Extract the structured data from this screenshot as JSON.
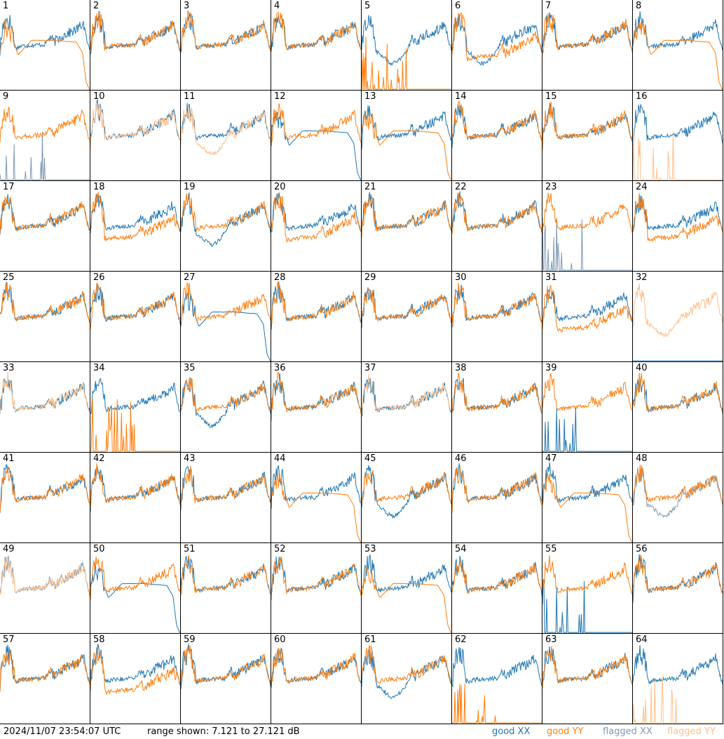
{
  "chart_data": {
    "type": "line",
    "title": "",
    "ylabel": "dB",
    "ylim": [
      7.121,
      27.121
    ],
    "grid_columns": 8,
    "colors": {
      "good_xx": "#1f77b4",
      "good_yy": "#ff7f0e",
      "flagged_xx": "#7f9ab5",
      "flagged_yy": "#ffbf8a"
    },
    "panels": [
      {
        "label": "1",
        "xx": [
          "good",
          "normal"
        ],
        "yy": [
          "good",
          "rolloff"
        ]
      },
      {
        "label": "2",
        "xx": [
          "good",
          "normal"
        ],
        "yy": [
          "good",
          "normal"
        ]
      },
      {
        "label": "3",
        "xx": [
          "good",
          "normal"
        ],
        "yy": [
          "good",
          "normal"
        ]
      },
      {
        "label": "4",
        "xx": [
          "good",
          "normal"
        ],
        "yy": [
          "good",
          "normal"
        ]
      },
      {
        "label": "5",
        "xx": [
          "good",
          "dip"
        ],
        "yy": [
          "good",
          "spikes"
        ]
      },
      {
        "label": "6",
        "xx": [
          "good",
          "dip"
        ],
        "yy": [
          "good",
          "low"
        ]
      },
      {
        "label": "7",
        "xx": [
          "good",
          "normal"
        ],
        "yy": [
          "good",
          "normal"
        ]
      },
      {
        "label": "8",
        "xx": [
          "good",
          "normal"
        ],
        "yy": [
          "good",
          "rolloff"
        ]
      },
      {
        "label": "9",
        "xx": [
          "flagged",
          "spikes"
        ],
        "yy": [
          "good",
          "normal"
        ]
      },
      {
        "label": "10",
        "xx": [
          "good",
          "normal"
        ],
        "yy": [
          "flagged",
          "normal"
        ]
      },
      {
        "label": "11",
        "xx": [
          "good",
          "normal"
        ],
        "yy": [
          "flagged",
          "dip"
        ]
      },
      {
        "label": "12",
        "xx": [
          "good",
          "rolloff"
        ],
        "yy": [
          "good",
          "normal"
        ]
      },
      {
        "label": "13",
        "xx": [
          "good",
          "normal"
        ],
        "yy": [
          "good",
          "rolloff"
        ]
      },
      {
        "label": "14",
        "xx": [
          "good",
          "normal"
        ],
        "yy": [
          "good",
          "normal"
        ]
      },
      {
        "label": "15",
        "xx": [
          "good",
          "normal"
        ],
        "yy": [
          "good",
          "normal"
        ]
      },
      {
        "label": "16",
        "xx": [
          "good",
          "normal"
        ],
        "yy": [
          "flagged",
          "spikes"
        ]
      },
      {
        "label": "17",
        "xx": [
          "good",
          "normal"
        ],
        "yy": [
          "good",
          "normal"
        ]
      },
      {
        "label": "18",
        "xx": [
          "good",
          "normal"
        ],
        "yy": [
          "good",
          "low"
        ]
      },
      {
        "label": "19",
        "xx": [
          "good",
          "dip"
        ],
        "yy": [
          "good",
          "normal"
        ]
      },
      {
        "label": "20",
        "xx": [
          "good",
          "normal"
        ],
        "yy": [
          "good",
          "low"
        ]
      },
      {
        "label": "21",
        "xx": [
          "good",
          "normal"
        ],
        "yy": [
          "good",
          "normal"
        ]
      },
      {
        "label": "22",
        "xx": [
          "good",
          "normal"
        ],
        "yy": [
          "good",
          "normal"
        ]
      },
      {
        "label": "23",
        "xx": [
          "flagged",
          "spikes"
        ],
        "yy": [
          "good",
          "normal"
        ]
      },
      {
        "label": "24",
        "xx": [
          "good",
          "normal"
        ],
        "yy": [
          "good",
          "low"
        ]
      },
      {
        "label": "25",
        "xx": [
          "good",
          "normal"
        ],
        "yy": [
          "good",
          "normal"
        ]
      },
      {
        "label": "26",
        "xx": [
          "good",
          "normal"
        ],
        "yy": [
          "good",
          "normal"
        ]
      },
      {
        "label": "27",
        "xx": [
          "good",
          "rolloff"
        ],
        "yy": [
          "good",
          "normal"
        ]
      },
      {
        "label": "28",
        "xx": [
          "good",
          "normal"
        ],
        "yy": [
          "good",
          "normal"
        ]
      },
      {
        "label": "29",
        "xx": [
          "good",
          "normal"
        ],
        "yy": [
          "good",
          "normal"
        ]
      },
      {
        "label": "30",
        "xx": [
          "good",
          "normal"
        ],
        "yy": [
          "good",
          "normal"
        ]
      },
      {
        "label": "31",
        "xx": [
          "good",
          "normal"
        ],
        "yy": [
          "good",
          "low"
        ]
      },
      {
        "label": "32",
        "xx": [
          "good",
          "flat"
        ],
        "yy": [
          "flagged",
          "dip"
        ]
      },
      {
        "label": "33",
        "xx": [
          "good",
          "normal"
        ],
        "yy": [
          "flagged",
          "normal"
        ]
      },
      {
        "label": "34",
        "xx": [
          "good",
          "normal"
        ],
        "yy": [
          "good",
          "spikes"
        ]
      },
      {
        "label": "35",
        "xx": [
          "good",
          "dip"
        ],
        "yy": [
          "good",
          "normal"
        ]
      },
      {
        "label": "36",
        "xx": [
          "good",
          "normal"
        ],
        "yy": [
          "good",
          "normal"
        ]
      },
      {
        "label": "37",
        "xx": [
          "good",
          "normal"
        ],
        "yy": [
          "flagged",
          "normal"
        ]
      },
      {
        "label": "38",
        "xx": [
          "good",
          "normal"
        ],
        "yy": [
          "good",
          "normal"
        ]
      },
      {
        "label": "39",
        "xx": [
          "good",
          "spikes"
        ],
        "yy": [
          "good",
          "normal"
        ]
      },
      {
        "label": "40",
        "xx": [
          "good",
          "normal"
        ],
        "yy": [
          "good",
          "normal"
        ]
      },
      {
        "label": "41",
        "xx": [
          "good",
          "normal"
        ],
        "yy": [
          "good",
          "normal"
        ]
      },
      {
        "label": "42",
        "xx": [
          "good",
          "normal"
        ],
        "yy": [
          "good",
          "normal"
        ]
      },
      {
        "label": "43",
        "xx": [
          "good",
          "normal"
        ],
        "yy": [
          "good",
          "normal"
        ]
      },
      {
        "label": "44",
        "xx": [
          "good",
          "normal"
        ],
        "yy": [
          "good",
          "rolloff"
        ]
      },
      {
        "label": "45",
        "xx": [
          "good",
          "dip"
        ],
        "yy": [
          "good",
          "normal"
        ]
      },
      {
        "label": "46",
        "xx": [
          "good",
          "normal"
        ],
        "yy": [
          "good",
          "normal"
        ]
      },
      {
        "label": "47",
        "xx": [
          "good",
          "normal"
        ],
        "yy": [
          "good",
          "rolloff"
        ]
      },
      {
        "label": "48",
        "xx": [
          "flagged",
          "dip"
        ],
        "yy": [
          "good",
          "normal"
        ]
      },
      {
        "label": "49",
        "xx": [
          "flagged",
          "normal"
        ],
        "yy": [
          "flagged",
          "normal"
        ]
      },
      {
        "label": "50",
        "xx": [
          "good",
          "rolloff"
        ],
        "yy": [
          "good",
          "normal"
        ]
      },
      {
        "label": "51",
        "xx": [
          "good",
          "normal"
        ],
        "yy": [
          "good",
          "normal"
        ]
      },
      {
        "label": "52",
        "xx": [
          "good",
          "normal"
        ],
        "yy": [
          "good",
          "normal"
        ]
      },
      {
        "label": "53",
        "xx": [
          "good",
          "normal"
        ],
        "yy": [
          "good",
          "rolloff"
        ]
      },
      {
        "label": "54",
        "xx": [
          "good",
          "normal"
        ],
        "yy": [
          "good",
          "normal"
        ]
      },
      {
        "label": "55",
        "xx": [
          "good",
          "spikes"
        ],
        "yy": [
          "good",
          "normal"
        ]
      },
      {
        "label": "56",
        "xx": [
          "good",
          "normal"
        ],
        "yy": [
          "good",
          "normal"
        ]
      },
      {
        "label": "57",
        "xx": [
          "good",
          "normal"
        ],
        "yy": [
          "good",
          "normal"
        ]
      },
      {
        "label": "58",
        "xx": [
          "good",
          "normal"
        ],
        "yy": [
          "good",
          "low"
        ]
      },
      {
        "label": "59",
        "xx": [
          "good",
          "normal"
        ],
        "yy": [
          "good",
          "normal"
        ]
      },
      {
        "label": "60",
        "xx": [
          "good",
          "normal"
        ],
        "yy": [
          "good",
          "normal"
        ]
      },
      {
        "label": "61",
        "xx": [
          "good",
          "dip"
        ],
        "yy": [
          "good",
          "normal"
        ]
      },
      {
        "label": "62",
        "xx": [
          "good",
          "normal"
        ],
        "yy": [
          "good",
          "spikes"
        ]
      },
      {
        "label": "63",
        "xx": [
          "good",
          "normal"
        ],
        "yy": [
          "good",
          "normal"
        ]
      },
      {
        "label": "64",
        "xx": [
          "good",
          "normal"
        ],
        "yy": [
          "flagged",
          "spikes"
        ]
      }
    ]
  },
  "footer": {
    "timestamp": "2024/11/07 23:54:07 UTC",
    "range": "range shown: 7.121 to 27.121 dB",
    "legend": {
      "good_xx": "good XX",
      "good_yy": "good YY",
      "flagged_xx": "flagged XX",
      "flagged_yy": "flagged YY"
    }
  }
}
